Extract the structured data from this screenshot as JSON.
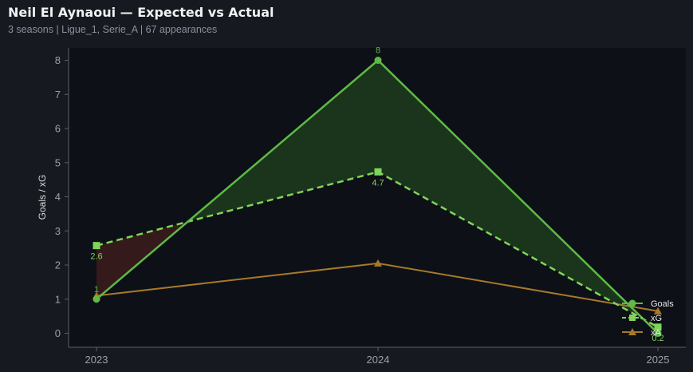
{
  "header": {
    "title": "Neil El Aynaoui — Expected vs Actual",
    "subtitle": "3 seasons | Ligue_1, Serie_A | 67 appearances"
  },
  "colors": {
    "background": "#161a20",
    "plot_background": "#0d1016",
    "goals": "#5dbb46",
    "xg": "#7fd45a",
    "xa": "#a8792a",
    "overperform_fill": "#1d3a1d",
    "underperform_fill": "#3a1c1c"
  },
  "chart_data": {
    "type": "line",
    "title": "",
    "xlabel": "",
    "ylabel": "Goals / xG",
    "categories": [
      "2023",
      "2024",
      "2025"
    ],
    "ylim": [
      -0.4,
      8.4
    ],
    "yticks": [
      0,
      1,
      2,
      3,
      4,
      5,
      6,
      7,
      8
    ],
    "grid": false,
    "legend_position": "bottom-right",
    "series": [
      {
        "name": "Goals",
        "values": [
          1,
          8,
          0
        ],
        "marker": "circle",
        "style": "solid",
        "labels": [
          "1",
          "8",
          ""
        ]
      },
      {
        "name": "xG",
        "values": [
          2.57,
          4.73,
          0.18
        ],
        "marker": "square",
        "style": "dashed",
        "labels": [
          "2.6",
          "4.7",
          "0.2"
        ]
      },
      {
        "name": "xA",
        "values": [
          1.1,
          2.05,
          0.65
        ],
        "marker": "triangle",
        "style": "solid",
        "labels": [
          "",
          "",
          ""
        ]
      }
    ]
  }
}
